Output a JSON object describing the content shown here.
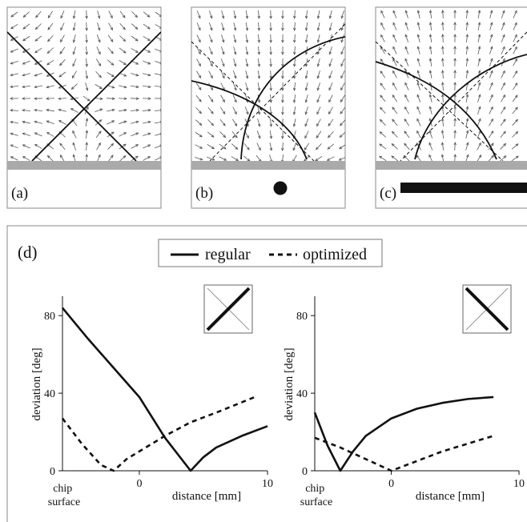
{
  "panels": [
    {
      "label": "(a)"
    },
    {
      "label": "(b)"
    },
    {
      "label": "(c)"
    }
  ],
  "panel_d": {
    "label": "(d)",
    "legend": {
      "solid_label": "regular",
      "dashed_label": "optimized"
    },
    "colors": {
      "line": "#111111",
      "chip_bar": "#aaaaaa",
      "frame": "#888888"
    },
    "icons": [
      "diagonal-cross-rising-bold-icon",
      "diagonal-cross-falling-bold-icon"
    ]
  },
  "chart_data": [
    {
      "type": "line",
      "ylabel": "deviation [deg]",
      "xlabel": "distance [mm]",
      "x_edge_label": "chip surface",
      "xticks": [
        "0",
        "10"
      ],
      "yticks": [
        "0",
        "40",
        "80"
      ],
      "xlim": [
        -6,
        10
      ],
      "ylim": [
        0,
        90
      ],
      "series": [
        {
          "name": "regular",
          "style": "solid",
          "x": [
            -6,
            -4,
            -2,
            0,
            2,
            4,
            5,
            6,
            8,
            10
          ],
          "y": [
            84,
            68,
            53,
            38,
            17,
            0,
            7,
            12,
            18,
            23
          ]
        },
        {
          "name": "optimized",
          "style": "dashed",
          "x": [
            -6,
            -4.5,
            -3,
            -2,
            -1,
            0,
            2,
            4,
            6,
            9
          ],
          "y": [
            27,
            14,
            3,
            0,
            6,
            10,
            18,
            25,
            30,
            38
          ]
        }
      ]
    },
    {
      "type": "line",
      "ylabel": "deviation [deg]",
      "xlabel": "distance [mm]",
      "x_edge_label": "chip surface",
      "xticks": [
        "0",
        "10"
      ],
      "yticks": [
        "0",
        "40",
        "80"
      ],
      "xlim": [
        -6,
        10
      ],
      "ylim": [
        0,
        90
      ],
      "series": [
        {
          "name": "regular",
          "style": "solid",
          "x": [
            -6,
            -5,
            -4,
            -3,
            -2,
            0,
            2,
            4,
            6,
            8
          ],
          "y": [
            30,
            13,
            0,
            10,
            18,
            27,
            32,
            35,
            37,
            38
          ]
        },
        {
          "name": "optimized",
          "style": "dashed",
          "x": [
            -6,
            -4,
            -2,
            0,
            2,
            4,
            6,
            8
          ],
          "y": [
            17,
            12,
            6,
            0,
            5,
            10,
            14,
            18
          ]
        }
      ]
    }
  ]
}
